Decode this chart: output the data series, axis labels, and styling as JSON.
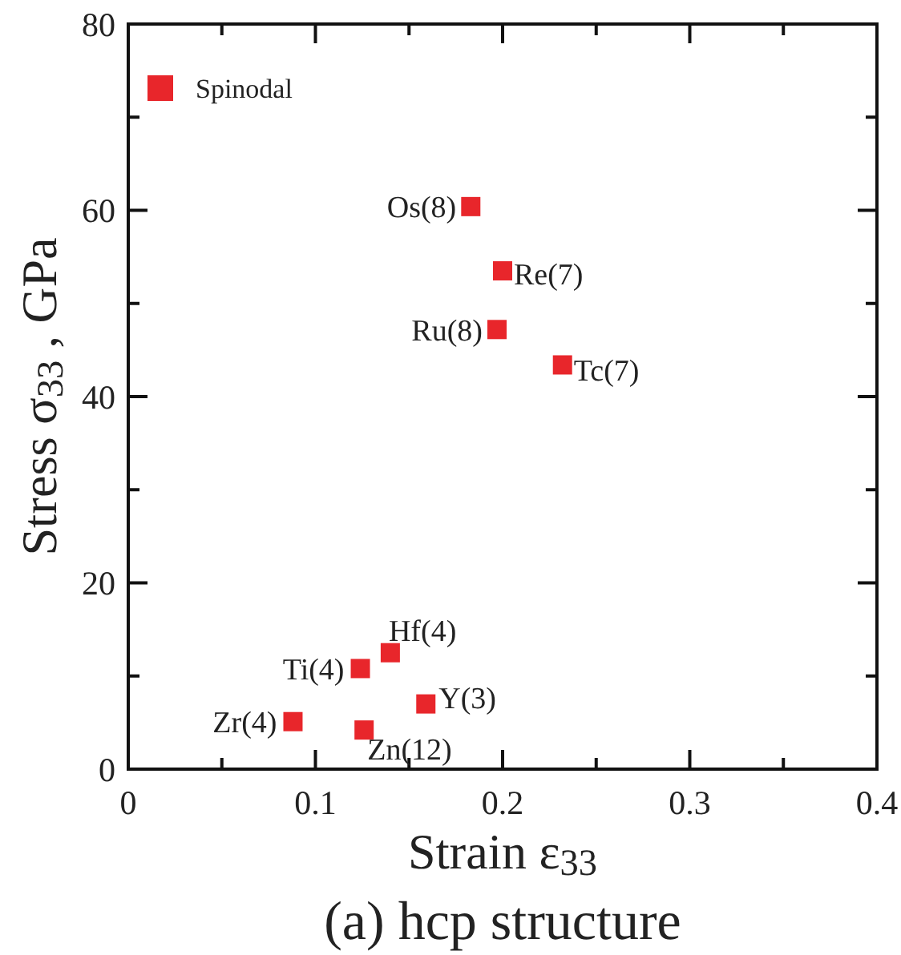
{
  "chart_data": {
    "type": "scatter",
    "title": "(a) hcp structure",
    "xlabel": "Strain ε$_{33}$",
    "ylabel": "Stress σ$_{33}$ , GPa",
    "series": [
      {
        "name": "Spinodal",
        "color": "#e8262b",
        "x": [
          0.183,
          0.2,
          0.197,
          0.232,
          0.14,
          0.124,
          0.159,
          0.088,
          0.126
        ],
        "values": [
          60.4,
          53.5,
          47.2,
          43.4,
          12.5,
          10.8,
          7.0,
          5.1,
          4.2
        ]
      }
    ],
    "annotations": [
      {
        "text": "Os(8)",
        "x": 0.183,
        "y": 60.4
      },
      {
        "text": "Re(7)",
        "x": 0.2,
        "y": 53.5
      },
      {
        "text": "Ru(8)",
        "x": 0.197,
        "y": 47.2
      },
      {
        "text": "Tc(7)",
        "x": 0.232,
        "y": 43.4
      },
      {
        "text": "Hf(4)",
        "x": 0.14,
        "y": 12.5
      },
      {
        "text": "Ti(4)",
        "x": 0.124,
        "y": 10.8
      },
      {
        "text": "Y(3)",
        "x": 0.159,
        "y": 7.0
      },
      {
        "text": "Zr(4)",
        "x": 0.088,
        "y": 5.1
      },
      {
        "text": "Zn(12)",
        "x": 0.126,
        "y": 4.2
      }
    ],
    "xlim": [
      0,
      0.4
    ],
    "ylim": [
      0,
      80
    ],
    "xticks": [
      0,
      {
        "value": 0.05,
        "label": null
      },
      0.1,
      {
        "value": 0.15,
        "label": null
      },
      0.2,
      {
        "value": 0.25,
        "label": null
      },
      0.3,
      {
        "value": 0.35,
        "label": null
      },
      0.4
    ],
    "yticks": [
      0,
      {
        "value": 10,
        "label": null
      },
      20,
      {
        "value": 30,
        "label": null
      },
      40,
      {
        "value": 50,
        "label": null
      },
      60,
      {
        "value": 70,
        "label": null
      },
      80
    ],
    "grid": false,
    "legend": "top left",
    "marker": "square"
  }
}
